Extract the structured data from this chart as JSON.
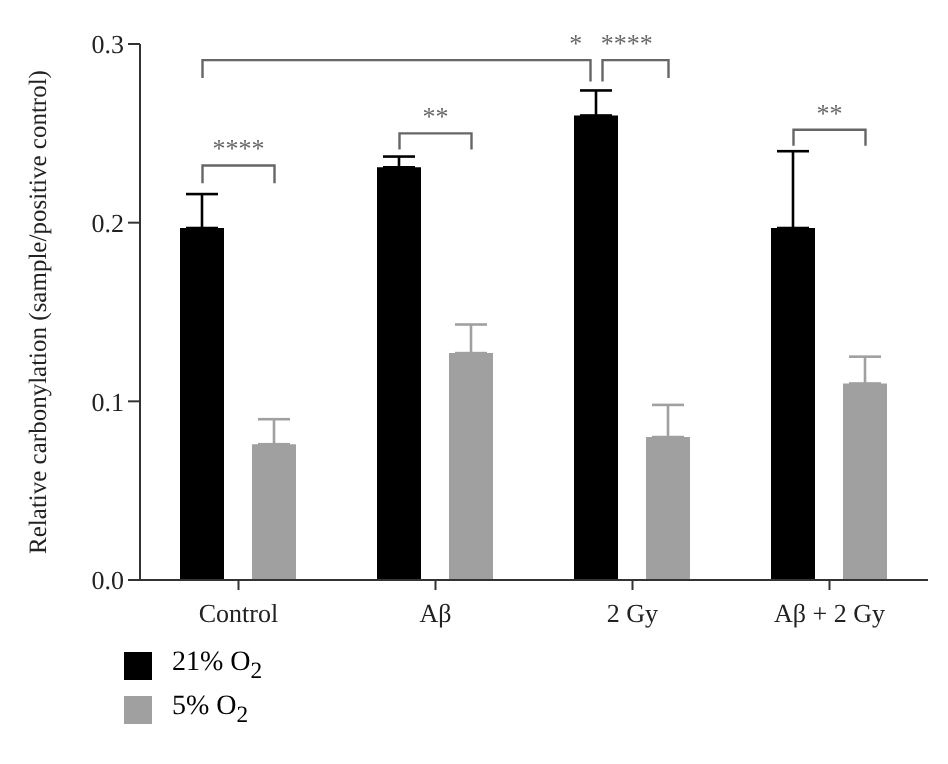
{
  "chart_data": {
    "type": "bar",
    "ylabel": "Relative carbonylation (sample/positive control)",
    "categories": [
      "Control",
      "Aβ",
      "2 Gy",
      "Aβ + 2 Gy"
    ],
    "series": [
      {
        "name": "21% O$_{2}$",
        "color": "#000000",
        "values": [
          0.197,
          0.231,
          0.26,
          0.197
        ],
        "errors": [
          [
            0.197,
            0.216
          ],
          [
            0.231,
            0.237
          ],
          [
            0.26,
            0.274
          ],
          [
            0.197,
            0.24
          ]
        ]
      },
      {
        "name": "5% O$_{2}$",
        "color": "#a0a0a0",
        "values": [
          0.076,
          0.127,
          0.08,
          0.11
        ],
        "errors": [
          [
            0.076,
            0.09
          ],
          [
            0.127,
            0.143
          ],
          [
            0.08,
            0.098
          ],
          [
            0.11,
            0.125
          ]
        ]
      }
    ],
    "ylim": [
      0,
      0.3
    ],
    "yticks": [
      {
        "value": 0,
        "label": "0.0"
      },
      0.1,
      0.2,
      0.3
    ],
    "grid": false,
    "legend": "bottom left",
    "annotations": [
      "* ****",
      "**",
      "**",
      "****"
    ]
  }
}
